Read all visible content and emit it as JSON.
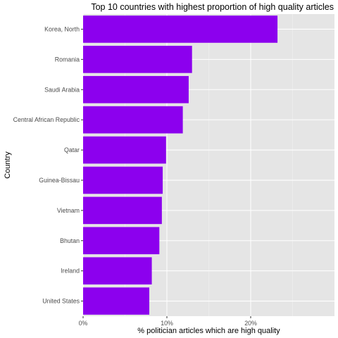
{
  "chart_data": {
    "type": "bar",
    "orientation": "horizontal",
    "title": "Top 10 countries with highest proportion of high quality articles",
    "xlabel": "% politician articles which are high quality",
    "ylabel": "Country",
    "categories": [
      "Korea, North",
      "Romania",
      "Saudi Arabia",
      "Central African Republic",
      "Qatar",
      "Guinea-Bissau",
      "Vietnam",
      "Bhutan",
      "Ireland",
      "United States"
    ],
    "values": [
      23.2,
      13.0,
      12.6,
      11.9,
      9.9,
      9.5,
      9.4,
      9.1,
      8.2,
      7.9
    ],
    "xlim": [
      0,
      30
    ],
    "x_ticks": [
      0,
      10,
      20
    ],
    "x_tick_labels": [
      "0%",
      "10%",
      "20%"
    ],
    "bar_color": "#8c00ee",
    "panel_background": "#e5e5e5",
    "grid": true
  }
}
